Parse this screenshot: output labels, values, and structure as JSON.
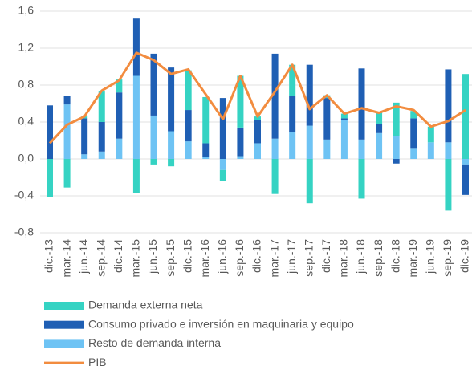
{
  "chart_data": {
    "type": "bar",
    "stacked": true,
    "categories": [
      "dic.-13",
      "mar.-14",
      "jun.-14",
      "sep.-14",
      "dic.-14",
      "mar.-15",
      "jun.-15",
      "sep.-15",
      "dic.-15",
      "mar.-16",
      "jun.-16",
      "sep.-16",
      "dic.-16",
      "mar.-17",
      "jun.-17",
      "sep.-17",
      "dic.-17",
      "mar.-18",
      "jun.-18",
      "sep.-18",
      "dic.-18",
      "mar.-19",
      "jun.-19",
      "sep.-19",
      "dic.-19"
    ],
    "series": [
      {
        "name": "Demanda externa neta",
        "color": "#35d3c3",
        "values": [
          -0.41,
          -0.31,
          0.02,
          0.33,
          0.14,
          -0.37,
          -0.06,
          -0.08,
          0.43,
          0.5,
          -0.12,
          0.56,
          0.04,
          -0.38,
          0.34,
          -0.48,
          0.03,
          0.05,
          -0.43,
          0.12,
          0.36,
          0.08,
          0.17,
          -0.56,
          0.92
        ]
      },
      {
        "name": "Consumo privado e inversión en maquinaria y equipo",
        "color": "#1f5fb4",
        "values": [
          0.58,
          0.09,
          0.39,
          0.32,
          0.5,
          0.62,
          0.67,
          0.69,
          0.34,
          0.15,
          0.66,
          0.31,
          0.25,
          0.92,
          0.39,
          0.66,
          0.45,
          0.02,
          0.77,
          0.1,
          -0.05,
          0.33,
          0.0,
          0.79,
          -0.33
        ]
      },
      {
        "name": "Resto de demanda interna",
        "color": "#6ec3f4",
        "values": [
          0.0,
          0.59,
          0.05,
          0.08,
          0.22,
          0.9,
          0.47,
          0.3,
          0.19,
          0.02,
          -0.12,
          0.03,
          0.17,
          0.22,
          0.29,
          0.36,
          0.21,
          0.42,
          0.21,
          0.28,
          0.25,
          0.11,
          0.18,
          0.18,
          -0.06
        ]
      },
      {
        "name": "PIB",
        "color": "#f28c3f",
        "type": "line",
        "values": [
          0.17,
          0.37,
          0.46,
          0.74,
          0.85,
          1.15,
          1.07,
          0.92,
          0.97,
          0.7,
          0.43,
          0.9,
          0.46,
          0.73,
          1.02,
          0.54,
          0.69,
          0.49,
          0.55,
          0.5,
          0.57,
          0.53,
          0.35,
          0.41,
          0.53
        ]
      }
    ],
    "stack_order": [
      2,
      1,
      0
    ],
    "ylim": [
      -0.8,
      1.6
    ],
    "yticks": [
      {
        "value": -0.8,
        "label": "-0,8"
      },
      {
        "value": -0.4,
        "label": "-0,4"
      },
      {
        "value": 0,
        "label": "0,0"
      },
      {
        "value": 0.4,
        "label": "0,4"
      },
      {
        "value": 0.8,
        "label": "0,8"
      },
      {
        "value": 1.2,
        "label": "1,2"
      },
      {
        "value": 1.6,
        "label": "1,6"
      }
    ],
    "grid": true,
    "legend": "bottom"
  }
}
